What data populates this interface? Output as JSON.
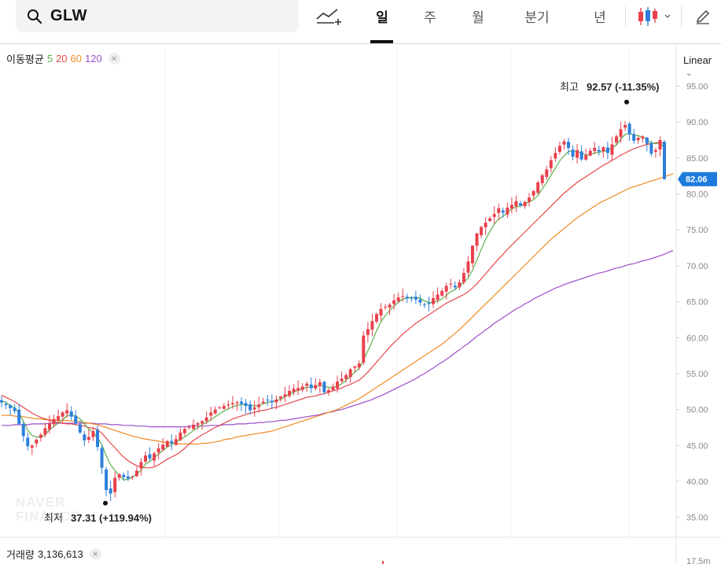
{
  "search": {
    "symbol": "GLW"
  },
  "periods": [
    "일",
    "주",
    "월",
    "분기",
    "년"
  ],
  "active_period": "일",
  "ma_legend": {
    "label": "이동평균",
    "p5": "5",
    "p20": "20",
    "p60": "60",
    "p120": "120",
    "close": "×"
  },
  "scale": {
    "label": "Linear",
    "arrow": "⌄"
  },
  "price_labels": [
    "95.00",
    "90.00",
    "85.00",
    "80.00",
    "75.00",
    "70.00",
    "65.00",
    "60.00",
    "55.00",
    "50.00",
    "45.00",
    "40.00",
    "35.00"
  ],
  "current_price": "82.06",
  "high": {
    "label": "최고",
    "value": "92.57 (-11.35%)"
  },
  "low": {
    "label": "최저",
    "value": "37.31 (+119.94%)"
  },
  "volume": {
    "label": "거래량",
    "value": "3,136,613",
    "close": "×",
    "scale_label": "17.5m"
  },
  "watermark": [
    "NAVER",
    "FINANCE"
  ],
  "colors": {
    "up": "#e8414d",
    "down": "#2e7fdc",
    "ma5": "#5bb14a",
    "ma20": "#e5484d",
    "ma60": "#f08a24",
    "ma120": "#9b4fc9",
    "current_badge": "#1e7bdc"
  },
  "chart_data": {
    "type": "candlestick",
    "y_axis": {
      "min": 35,
      "max": 95,
      "step": 5,
      "scale": "linear"
    },
    "current_price": 82.06,
    "high_marker": 92.57,
    "low_marker": 37.31,
    "closes": [
      51.0,
      50.6,
      50.2,
      49.8,
      48.0,
      46.3,
      44.9,
      45.0,
      45.8,
      46.5,
      47.4,
      48.1,
      48.7,
      49.1,
      49.6,
      49.9,
      49.0,
      48.1,
      46.8,
      45.7,
      46.2,
      47.0,
      44.8,
      41.9,
      38.8,
      38.3,
      40.5,
      41.0,
      40.6,
      40.4,
      40.7,
      41.5,
      42.7,
      43.6,
      43.2,
      43.9,
      44.6,
      45.1,
      45.6,
      45.3,
      45.9,
      46.8,
      47.3,
      47.6,
      47.9,
      48.1,
      48.4,
      48.9,
      49.6,
      50.0,
      50.3,
      50.5,
      50.7,
      50.9,
      51.0,
      50.8,
      50.5,
      49.9,
      50.3,
      50.7,
      51.1,
      51.3,
      51.0,
      51.4,
      51.8,
      52.1,
      52.6,
      52.9,
      53.0,
      53.2,
      53.6,
      53.0,
      53.4,
      53.8,
      52.4,
      52.7,
      53.2,
      53.9,
      54.3,
      54.8,
      55.6,
      56.0,
      56.4,
      60.3,
      61.2,
      62.3,
      63.3,
      64.0,
      64.3,
      64.6,
      65.2,
      65.6,
      65.8,
      65.5,
      65.5,
      65.3,
      64.9,
      64.6,
      64.7,
      65.5,
      66.0,
      66.5,
      67.2,
      67.5,
      67.0,
      67.7,
      69.0,
      70.6,
      72.8,
      74.5,
      75.4,
      76.0,
      76.6,
      77.2,
      78.0,
      77.4,
      78.1,
      78.5,
      79.0,
      78.4,
      78.9,
      79.5,
      80.4,
      81.6,
      82.6,
      83.4,
      84.7,
      85.7,
      86.7,
      87.3,
      86.4,
      85.2,
      86.1,
      84.8,
      85.4,
      86.0,
      86.4,
      85.9,
      86.5,
      85.7,
      86.9,
      88.0,
      89.0,
      89.6,
      88.3,
      87.4,
      87.8,
      88.0,
      87.0,
      85.6,
      86.1,
      87.5,
      82.06
    ],
    "ma5": [
      51.2,
      51.0,
      50.6,
      50.2,
      49.6,
      48.4,
      47.1,
      46.4,
      46.2,
      46.1,
      46.5,
      47.2,
      47.7,
      48.1,
      48.6,
      49.1,
      49.3,
      49.1,
      48.7,
      48.0,
      47.3,
      46.8,
      46.1,
      45.1,
      43.6,
      42.3,
      41.5,
      40.8,
      40.2,
      40.3,
      40.6,
      41.0,
      41.6,
      42.4,
      42.8,
      43.3,
      43.8,
      44.3,
      44.8,
      45.1,
      45.5,
      45.8,
      46.2,
      46.6,
      47.1,
      47.5,
      47.9,
      48.2,
      48.6,
      49.0,
      49.4,
      49.8,
      50.1,
      50.4,
      50.6,
      50.7,
      50.7,
      50.6,
      50.5,
      50.6,
      50.8,
      51.0,
      51.1,
      51.3,
      51.4,
      51.8,
      52.1,
      52.4,
      52.7,
      52.9,
      53.1,
      53.1,
      53.2,
      53.4,
      53.2,
      53.1,
      53.1,
      53.2,
      53.6,
      54.1,
      54.6,
      55.2,
      55.7,
      56.9,
      58.2,
      59.5,
      61.0,
      62.2,
      63.1,
      63.8,
      64.4,
      64.9,
      65.4,
      65.5,
      65.6,
      65.6,
      65.5,
      65.1,
      64.9,
      64.9,
      65.1,
      65.4,
      65.9,
      66.4,
      66.7,
      67.2,
      67.7,
      68.3,
      69.4,
      70.8,
      72.3,
      73.7,
      74.8,
      75.8,
      76.5,
      76.9,
      77.4,
      77.9,
      78.2,
      78.3,
      78.6,
      78.9,
      79.2,
      79.8,
      80.7,
      81.6,
      82.6,
      83.6,
      84.6,
      85.3,
      85.9,
      86.0,
      85.9,
      85.7,
      85.4,
      85.5,
      85.7,
      85.8,
      85.9,
      86.1,
      86.4,
      86.8,
      87.6,
      88.3,
      88.4,
      88.2,
      88.1,
      87.9,
      87.5,
      87.1,
      87.0,
      87.1,
      86.4
    ],
    "ma20": [
      52.0,
      51.7,
      51.4,
      51.1,
      50.7,
      50.3,
      49.9,
      49.5,
      49.2,
      48.9,
      48.7,
      48.5,
      48.3,
      48.2,
      48.1,
      48.0,
      48.0,
      47.9,
      47.8,
      47.7,
      47.5,
      47.4,
      47.2,
      46.7,
      46.0,
      45.3,
      44.7,
      44.0,
      43.4,
      42.9,
      42.5,
      42.2,
      42.0,
      41.9,
      41.9,
      42.0,
      42.3,
      42.7,
      43.1,
      43.4,
      43.7,
      44.1,
      44.6,
      45.2,
      45.7,
      46.1,
      46.5,
      46.8,
      47.2,
      47.5,
      47.8,
      48.1,
      48.4,
      48.7,
      48.9,
      49.1,
      49.3,
      49.5,
      49.6,
      49.8,
      49.9,
      50.0,
      50.2,
      50.3,
      50.5,
      50.7,
      50.9,
      51.1,
      51.3,
      51.5,
      51.7,
      51.8,
      51.9,
      52.1,
      52.2,
      52.4,
      52.6,
      52.8,
      53.0,
      53.3,
      53.5,
      53.8,
      54.1,
      54.6,
      55.2,
      55.9,
      56.6,
      57.3,
      58.0,
      58.7,
      59.3,
      59.9,
      60.5,
      61.0,
      61.5,
      62.0,
      62.4,
      62.8,
      63.2,
      63.6,
      64.0,
      64.4,
      64.8,
      65.1,
      65.4,
      65.7,
      66.0,
      66.4,
      66.9,
      67.5,
      68.2,
      68.9,
      69.6,
      70.3,
      71.0,
      71.6,
      72.3,
      72.9,
      73.5,
      74.1,
      74.7,
      75.3,
      75.9,
      76.5,
      77.1,
      77.7,
      78.3,
      78.9,
      79.5,
      80.1,
      80.6,
      81.1,
      81.6,
      82.0,
      82.4,
      82.8,
      83.2,
      83.6,
      84.0,
      84.3,
      84.7,
      85.0,
      85.4,
      85.7,
      86.0,
      86.3,
      86.5,
      86.7,
      86.9,
      87.0,
      87.1,
      87.2,
      87.0
    ],
    "ma60": [
      49.2,
      49.2,
      49.2,
      49.1,
      49.0,
      49.0,
      48.9,
      48.8,
      48.7,
      48.7,
      48.6,
      48.6,
      48.5,
      48.5,
      48.5,
      48.5,
      48.4,
      48.4,
      48.3,
      48.2,
      48.1,
      48.0,
      47.9,
      47.7,
      47.5,
      47.3,
      47.1,
      46.9,
      46.7,
      46.5,
      46.3,
      46.2,
      46.0,
      45.9,
      45.8,
      45.7,
      45.6,
      45.5,
      45.4,
      45.3,
      45.3,
      45.2,
      45.2,
      45.2,
      45.2,
      45.2,
      45.3,
      45.3,
      45.4,
      45.5,
      45.6,
      45.8,
      45.9,
      46.0,
      46.2,
      46.3,
      46.4,
      46.5,
      46.6,
      46.7,
      46.8,
      46.9,
      47.0,
      47.2,
      47.4,
      47.6,
      47.8,
      48.0,
      48.2,
      48.4,
      48.6,
      48.8,
      49.0,
      49.2,
      49.4,
      49.6,
      49.8,
      50.0,
      50.3,
      50.6,
      50.9,
      51.2,
      51.5,
      51.9,
      52.3,
      52.7,
      53.1,
      53.5,
      53.9,
      54.3,
      54.7,
      55.1,
      55.5,
      55.9,
      56.3,
      56.7,
      57.1,
      57.5,
      57.9,
      58.3,
      58.7,
      59.1,
      59.6,
      60.1,
      60.6,
      61.1,
      61.7,
      62.3,
      62.9,
      63.5,
      64.1,
      64.7,
      65.3,
      65.9,
      66.5,
      67.1,
      67.7,
      68.3,
      68.9,
      69.5,
      70.1,
      70.7,
      71.3,
      71.9,
      72.5,
      73.1,
      73.7,
      74.2,
      74.7,
      75.2,
      75.7,
      76.2,
      76.7,
      77.1,
      77.5,
      77.9,
      78.3,
      78.7,
      79.0,
      79.3,
      79.6,
      79.9,
      80.2,
      80.5,
      80.8,
      81.0,
      81.2,
      81.4,
      81.6,
      81.8,
      82.0,
      82.2,
      82.4,
      82.6,
      82.8
    ],
    "ma120": [
      47.8,
      47.8,
      47.8,
      47.9,
      47.9,
      47.9,
      47.9,
      48.0,
      48.0,
      48.0,
      48.0,
      48.1,
      48.1,
      48.1,
      48.1,
      48.1,
      48.1,
      48.1,
      48.1,
      48.1,
      48.1,
      48.1,
      48.0,
      48.0,
      48.0,
      47.9,
      47.9,
      47.9,
      47.8,
      47.8,
      47.8,
      47.7,
      47.7,
      47.7,
      47.6,
      47.6,
      47.6,
      47.6,
      47.6,
      47.6,
      47.6,
      47.6,
      47.6,
      47.7,
      47.7,
      47.7,
      47.7,
      47.7,
      47.8,
      47.8,
      47.8,
      47.9,
      47.9,
      47.9,
      48.0,
      48.0,
      48.0,
      48.1,
      48.1,
      48.2,
      48.2,
      48.3,
      48.3,
      48.4,
      48.5,
      48.5,
      48.6,
      48.7,
      48.8,
      48.9,
      49.0,
      49.1,
      49.2,
      49.3,
      49.5,
      49.6,
      49.7,
      49.9,
      50.0,
      50.2,
      50.4,
      50.6,
      50.8,
      51.0,
      51.2,
      51.4,
      51.7,
      51.9,
      52.2,
      52.5,
      52.8,
      53.1,
      53.4,
      53.7,
      54.0,
      54.3,
      54.7,
      55.0,
      55.4,
      55.8,
      56.2,
      56.6,
      57.0,
      57.4,
      57.9,
      58.3,
      58.8,
      59.2,
      59.7,
      60.2,
      60.6,
      61.1,
      61.5,
      62.0,
      62.4,
      62.8,
      63.2,
      63.6,
      64.0,
      64.3,
      64.7,
      65.0,
      65.4,
      65.7,
      66.0,
      66.3,
      66.6,
      66.9,
      67.1,
      67.4,
      67.6,
      67.8,
      68.0,
      68.2,
      68.4,
      68.6,
      68.8,
      69.0,
      69.1,
      69.3,
      69.5,
      69.7,
      69.8,
      70.0,
      70.2,
      70.3,
      70.5,
      70.7,
      70.8,
      71.0,
      71.2,
      71.4,
      71.6,
      71.9,
      72.1
    ]
  }
}
